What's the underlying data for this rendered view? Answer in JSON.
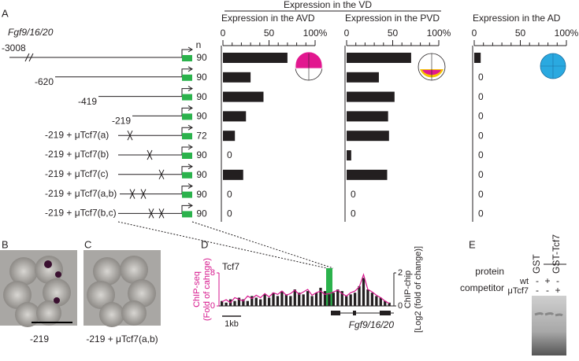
{
  "panel_labels": [
    "A",
    "B",
    "C",
    "D",
    "E"
  ],
  "header": "Expression in the VD",
  "gene": "Fgf9/16/20",
  "n_label": "n",
  "constructs": [
    {
      "label": "-3008",
      "n": 90
    },
    {
      "label": "-620",
      "n": 90
    },
    {
      "label": "-419",
      "n": 90
    },
    {
      "label": "-219",
      "n": 90
    },
    {
      "label": "-219 + μTcf7(a)",
      "n": 72
    },
    {
      "label": "-219 + μTcf7(b)",
      "n": 90
    },
    {
      "label": "-219 + μTcf7(c)",
      "n": 90
    },
    {
      "label": "-219 + μTcf7(a,b)",
      "n": 90
    },
    {
      "label": "-219 + μTcf7(b,c)",
      "n": 90
    }
  ],
  "chart_data": [
    {
      "type": "hbar",
      "title": "Expression in the AVD",
      "xlim": [
        0,
        100
      ],
      "xticks": [
        0,
        50,
        {
          "value": 100,
          "label": "100%"
        }
      ],
      "color": "#231f20",
      "values": [
        70,
        30,
        44,
        25,
        13,
        0,
        22,
        0,
        0
      ]
    },
    {
      "type": "hbar",
      "title": "Expression in the PVD",
      "xlim": [
        0,
        100
      ],
      "xticks": [
        0,
        50,
        {
          "value": 100,
          "label": "100%"
        }
      ],
      "color": "#231f20",
      "values": [
        70,
        35,
        52,
        45,
        46,
        5,
        44,
        0,
        0
      ]
    },
    {
      "type": "hbar",
      "title": "Expression in the AD",
      "xlim": [
        0,
        100
      ],
      "xticks": [
        0,
        50,
        {
          "value": 100,
          "label": "100%"
        }
      ],
      "color": "#231f20",
      "values": [
        7,
        0,
        0,
        0,
        0,
        0,
        0,
        0,
        0
      ]
    }
  ],
  "panel_b_label": "-219",
  "panel_c_label": "-219 + μTcf7(a,b)",
  "panel_d": {
    "factor": "Tcf7",
    "left_axis": [
      "ChIP-seq",
      "(Fold of cahnge)"
    ],
    "right_axis": [
      "ChIP-chip",
      "[Log2 (fold of change)]"
    ],
    "ylim": [
      0,
      8
    ],
    "yticks": [
      0,
      8
    ],
    "y2lim": [
      0,
      2
    ],
    "y2ticks": [
      0,
      2
    ],
    "scale_label": "1kb",
    "gene": "Fgf9/16/20",
    "series": [
      {
        "name": "ChIP-chip",
        "color": "#231f20",
        "axis": "y2",
        "values": [
          0.3,
          0.2,
          0.4,
          0.3,
          0.5,
          0.4,
          0.3,
          0.6,
          0.5,
          0.4,
          0.7,
          0.5,
          0.8,
          0.6,
          0.9,
          0.7,
          0.6,
          1.0,
          0.8,
          0.7,
          0.9,
          0.6,
          0.8,
          1.1,
          0.9,
          0.7,
          0.8,
          1.0,
          0.9,
          0.6,
          0.7,
          0.8,
          1.2,
          1.7,
          1.0,
          0.8,
          0.6,
          0.5,
          0.3,
          0.2
        ]
      },
      {
        "name": "ChIP-seq",
        "color": "#d6168c",
        "values": [
          1.0,
          1.5,
          0.8,
          2.0,
          1.6,
          1.2,
          2.4,
          1.8,
          2.6,
          2.0,
          3.0,
          2.2,
          3.2,
          2.8,
          3.6,
          2.6,
          3.0,
          3.8,
          2.8,
          3.4,
          4.0,
          2.6,
          3.2,
          3.6,
          2.8,
          3.0,
          3.4,
          3.8,
          3.0,
          2.4,
          3.2,
          3.6,
          4.6,
          7.6,
          4.0,
          3.4,
          2.6,
          2.0,
          1.2,
          0.6
        ]
      }
    ]
  },
  "panel_e": {
    "protein_label": "protein",
    "competitor_label": "competitor",
    "lanes": [
      "GST",
      "GST-Tcf7"
    ],
    "competitors": [
      {
        "label": "wt",
        "signs": [
          "-",
          "+",
          "-"
        ]
      },
      {
        "label": "μTcf7",
        "signs": [
          "-",
          "-",
          "+"
        ]
      }
    ]
  }
}
